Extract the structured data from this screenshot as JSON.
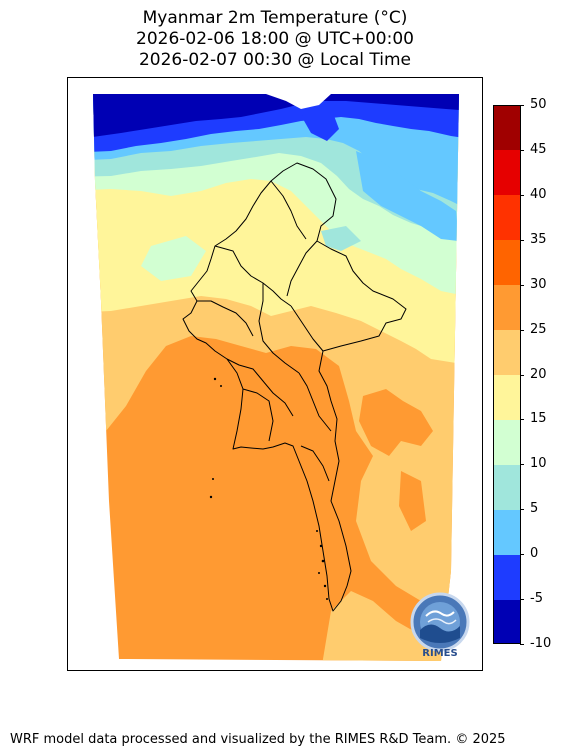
{
  "title": {
    "line1": "Myanmar 2m Temperature (°C)",
    "line2": "2026-02-06 18:00 @ UTC+00:00",
    "line3": "2026-02-07 00:30 @ Local Time"
  },
  "colorbar": {
    "levels": [
      {
        "label": "-10",
        "color": "#0000b4"
      },
      {
        "label": "-5",
        "color": "#1e3cff"
      },
      {
        "label": "0",
        "color": "#64c8ff"
      },
      {
        "label": "5",
        "color": "#a0e6dc"
      },
      {
        "label": "10",
        "color": "#d2ffd2"
      },
      {
        "label": "15",
        "color": "#fff59a"
      },
      {
        "label": "20",
        "color": "#ffcc6e"
      },
      {
        "label": "25",
        "color": "#ff9a32"
      },
      {
        "label": "30",
        "color": "#ff6400"
      },
      {
        "label": "35",
        "color": "#ff3200"
      },
      {
        "label": "40",
        "color": "#e60000"
      },
      {
        "label": "45",
        "color": "#a00000"
      }
    ],
    "top_label": "50"
  },
  "logo": {
    "text": "RIMES"
  },
  "footer": "WRF model data processed and visualized by the RIMES R&D Team. © 2025"
}
